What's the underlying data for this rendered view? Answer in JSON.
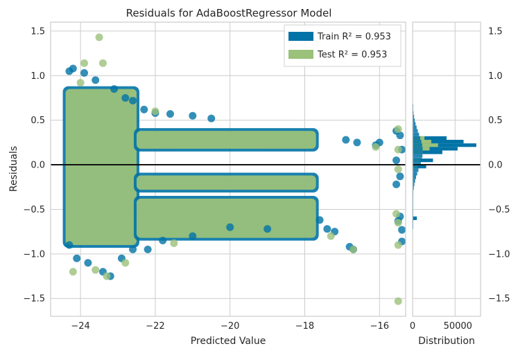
{
  "chart_data": {
    "type": "scatter",
    "title": "Residuals for AdaBoostRegressor Model",
    "xlabel": "Predicted Value",
    "ylabel": "Residuals",
    "xlim": [
      -24.8,
      -15.3
    ],
    "ylim": [
      -1.7,
      1.6
    ],
    "x_ticks": [
      -24,
      -22,
      -20,
      -18,
      -16
    ],
    "y_ticks": [
      -1.5,
      -1.0,
      -0.5,
      0.0,
      0.5,
      1.0,
      1.5
    ],
    "grid": true,
    "legend_position": "top-right",
    "zero_line": 0.0,
    "colors": {
      "train": "#0173a6",
      "test": "#9bc17a",
      "zero_line": "#111111",
      "grid": "#cccccc"
    },
    "series": [
      {
        "name": "Train",
        "legend_label": "Train R² = 0.953",
        "role": "train",
        "points": [
          [
            -24.3,
            1.05
          ],
          [
            -24.2,
            1.08
          ],
          [
            -23.9,
            1.03
          ],
          [
            -23.6,
            0.95
          ],
          [
            -23.1,
            0.85
          ],
          [
            -22.8,
            0.75
          ],
          [
            -22.6,
            0.72
          ],
          [
            -22.3,
            0.62
          ],
          [
            -22.0,
            0.58
          ],
          [
            -21.6,
            0.57
          ],
          [
            -21.0,
            0.55
          ],
          [
            -20.5,
            0.52
          ],
          [
            -24.3,
            -0.9
          ],
          [
            -24.1,
            -1.05
          ],
          [
            -23.8,
            -1.1
          ],
          [
            -23.4,
            -1.2
          ],
          [
            -23.2,
            -1.25
          ],
          [
            -22.9,
            -1.05
          ],
          [
            -22.6,
            -0.95
          ],
          [
            -22.2,
            -0.95
          ],
          [
            -21.8,
            -0.85
          ],
          [
            -21.0,
            -0.8
          ],
          [
            -20.0,
            -0.7
          ],
          [
            -19.0,
            -0.72
          ],
          [
            -17.6,
            -0.62
          ],
          [
            -17.4,
            -0.72
          ],
          [
            -17.2,
            -0.75
          ],
          [
            -16.8,
            -0.92
          ],
          [
            -16.7,
            -0.95
          ],
          [
            -16.9,
            0.28
          ],
          [
            -16.6,
            0.25
          ],
          [
            -16.1,
            0.22
          ],
          [
            -16.0,
            0.25
          ],
          [
            -15.55,
            0.38
          ],
          [
            -15.45,
            0.33
          ],
          [
            -15.55,
            -0.22
          ],
          [
            -15.45,
            -0.58
          ],
          [
            -15.5,
            -0.63
          ],
          [
            -15.4,
            -0.73
          ],
          [
            -15.4,
            -0.86
          ],
          [
            -15.45,
            -0.13
          ],
          [
            -15.55,
            0.05
          ],
          [
            -15.4,
            0.17
          ]
        ],
        "hist_counts": [
          {
            "bin": 0.22,
            "count": 75000
          },
          {
            "bin": 0.26,
            "count": 60000
          },
          {
            "bin": 0.18,
            "count": 53000
          },
          {
            "bin": 0.3,
            "count": 40000
          },
          {
            "bin": 0.14,
            "count": 35000
          },
          {
            "bin": 0.05,
            "count": 24000
          },
          {
            "bin": -0.02,
            "count": 16000
          },
          {
            "bin": -0.6,
            "count": 5000
          }
        ]
      },
      {
        "name": "Test",
        "legend_label": "Test R² = 0.953",
        "role": "test",
        "points": [
          [
            -23.5,
            1.43
          ],
          [
            -23.9,
            1.14
          ],
          [
            -23.4,
            1.14
          ],
          [
            -24.0,
            0.92
          ],
          [
            -22.6,
            0.8
          ],
          [
            -22.0,
            0.6
          ],
          [
            -24.2,
            -1.2
          ],
          [
            -23.6,
            -1.18
          ],
          [
            -23.3,
            -1.25
          ],
          [
            -22.8,
            -1.1
          ],
          [
            -21.5,
            -0.88
          ],
          [
            -17.3,
            -0.8
          ],
          [
            -16.7,
            -0.95
          ],
          [
            -16.1,
            0.2
          ],
          [
            -15.5,
            -1.53
          ],
          [
            -15.5,
            -0.9
          ],
          [
            -15.5,
            0.4
          ],
          [
            -15.5,
            0.17
          ],
          [
            -15.5,
            -0.05
          ],
          [
            -15.55,
            -0.55
          ],
          [
            -15.5,
            -0.65
          ]
        ],
        "hist_counts": [
          {
            "bin": 0.22,
            "count": 30000
          },
          {
            "bin": 0.26,
            "count": 22000
          },
          {
            "bin": 0.18,
            "count": 20000
          },
          {
            "bin": 0.3,
            "count": 14000
          },
          {
            "bin": 0.14,
            "count": 12000
          },
          {
            "bin": 0.05,
            "count": 9000
          },
          {
            "bin": -0.02,
            "count": 6000
          }
        ]
      }
    ],
    "bands": [
      {
        "x_start": -24.4,
        "x_end": -22.5,
        "y_low": -0.9,
        "y_high": 0.85
      },
      {
        "x_start": -22.5,
        "x_end": -17.7,
        "y_low": 0.18,
        "y_high": 0.38
      },
      {
        "x_start": -22.5,
        "x_end": -17.7,
        "y_low": -0.28,
        "y_high": -0.12
      },
      {
        "x_start": -22.5,
        "x_end": -17.7,
        "y_low": -0.82,
        "y_high": -0.38
      }
    ],
    "distribution": {
      "xlabel": "Distribution",
      "x_ticks": [
        0,
        50000
      ],
      "xlim": [
        0,
        80000
      ]
    }
  }
}
